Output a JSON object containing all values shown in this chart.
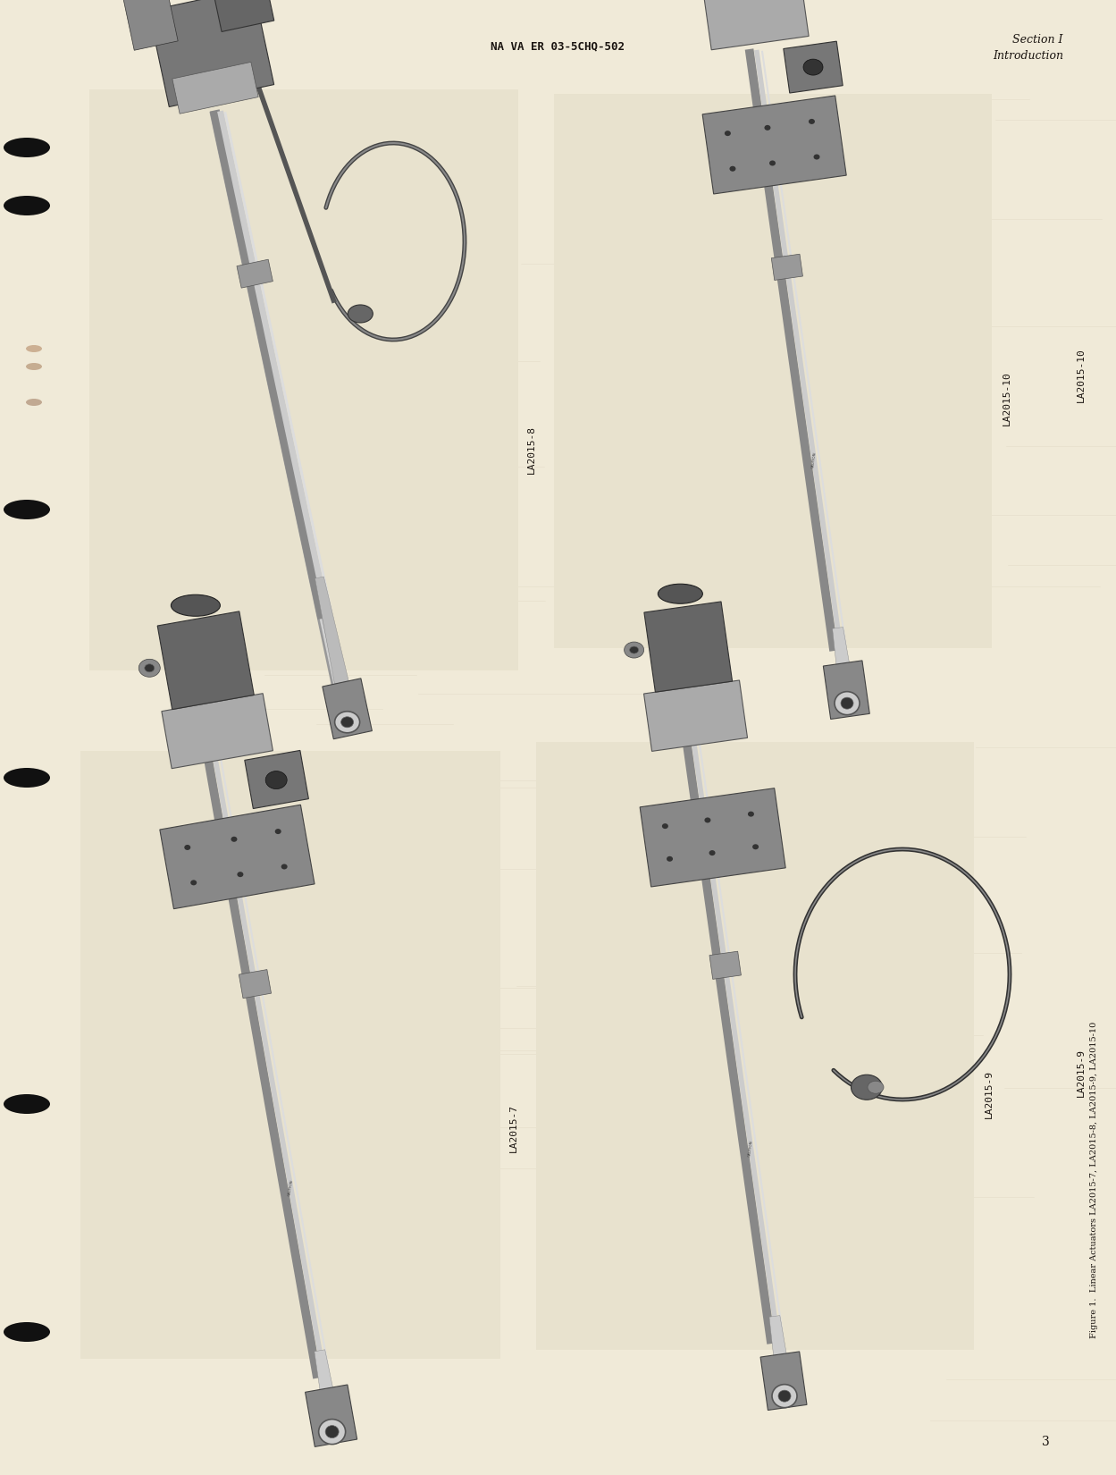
{
  "page_bg_color": "#f0ead8",
  "page_text_bleed": "#e8e0cc",
  "header_text": "NA VA ER 03-5CHQ-502",
  "header_right_line1": "Section I",
  "header_right_line2": "Introduction",
  "page_number": "3",
  "label_tl": "LA2015-8",
  "label_tr": "LA2015-10",
  "label_bl": "LA2015-7",
  "label_br": "LA2015-9",
  "side_label_tr": "LA2015-10",
  "side_label_br": "LA2015-9",
  "figure_caption": "Figure 1.  Linear Actuators LA2015-7, LA2015-8, LA2015-9, LA2015-10",
  "text_color": "#1a1410",
  "binding_color": "#111111",
  "photo_bg": "#e8e2ce",
  "photo_border": "#aaaaaa",
  "actuator_dark": "#1a1a1a",
  "actuator_mid": "#555555",
  "actuator_light": "#888888",
  "actuator_shiny": "#cccccc",
  "actuator_chrome": "#bbbbbb"
}
